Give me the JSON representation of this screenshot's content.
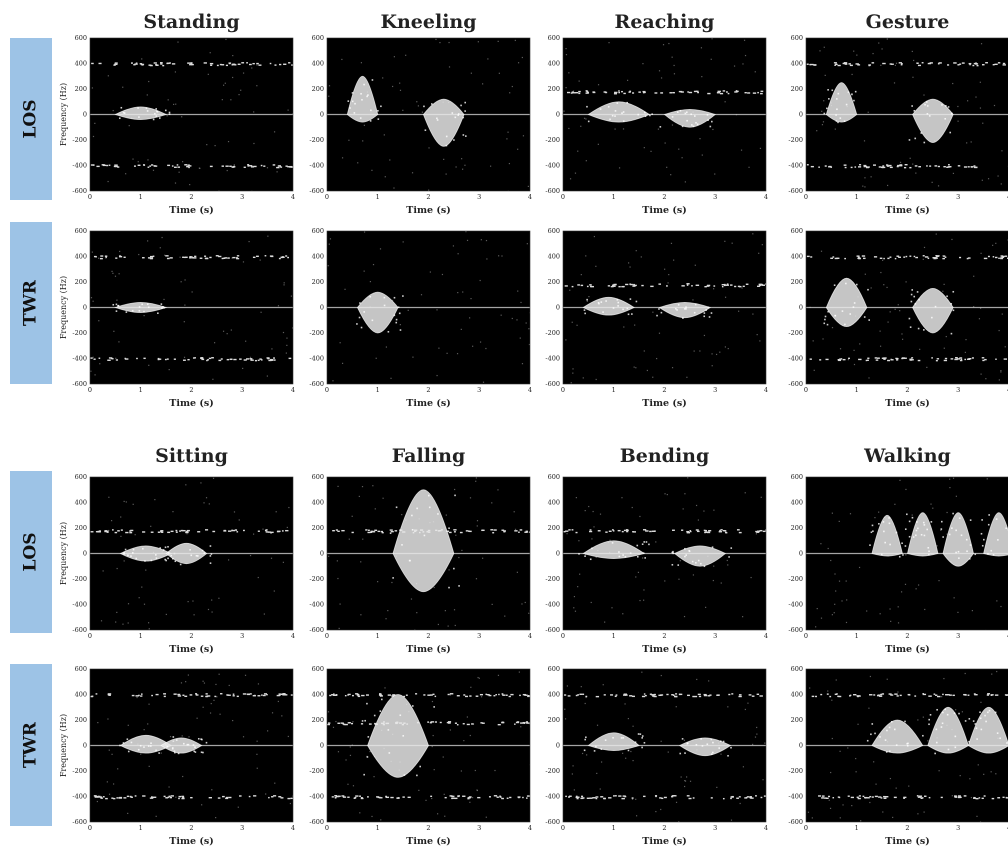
{
  "figure": {
    "row_labels": [
      "LOS",
      "TWR",
      "LOS",
      "TWR"
    ],
    "label_box_color": "#9dc3e6",
    "background": "#000000",
    "signal_color": "#e8e8e8"
  },
  "chart_data": [
    {
      "type": "heatmap",
      "title": "Standing",
      "row": "LOS",
      "xlabel": "Time (s)",
      "ylabel": "Frequency (Hz)",
      "xlim": [
        0,
        4
      ],
      "ylim": [
        -600,
        600
      ],
      "x_ticks": [
        0,
        1,
        2,
        3,
        4
      ],
      "y_ticks": [
        600,
        400,
        200,
        0,
        -200,
        -400,
        -600
      ],
      "bursts": [
        {
          "t_center": 1.0,
          "t_width": 0.5,
          "f_max": 60,
          "f_min": -40
        }
      ],
      "clutter_bands_hz": [
        400,
        -400
      ],
      "max_doppler_hz": 60
    },
    {
      "type": "heatmap",
      "title": "Kneeling",
      "row": "LOS",
      "xlabel": "Time (s)",
      "ylabel": "Frequency (Hz)",
      "xlim": [
        0,
        4
      ],
      "ylim": [
        -600,
        600
      ],
      "x_ticks": [
        0,
        1,
        2,
        3,
        4
      ],
      "y_ticks": [
        600,
        400,
        200,
        0,
        -200,
        -400,
        -600
      ],
      "bursts": [
        {
          "t_center": 0.7,
          "t_width": 0.3,
          "f_max": 300,
          "f_min": -60
        },
        {
          "t_center": 2.3,
          "t_width": 0.4,
          "f_max": 120,
          "f_min": -250
        }
      ],
      "clutter_bands_hz": [],
      "max_doppler_hz": 300
    },
    {
      "type": "heatmap",
      "title": "Reaching",
      "row": "LOS",
      "xlabel": "Time (s)",
      "ylabel": "Frequency (Hz)",
      "xlim": [
        0,
        4
      ],
      "ylim": [
        -600,
        600
      ],
      "x_ticks": [
        0,
        1,
        2,
        3,
        4
      ],
      "y_ticks": [
        600,
        400,
        200,
        0,
        -200,
        -400,
        -600
      ],
      "bursts": [
        {
          "t_center": 1.1,
          "t_width": 0.6,
          "f_max": 100,
          "f_min": -60
        },
        {
          "t_center": 2.5,
          "t_width": 0.5,
          "f_max": 40,
          "f_min": -100
        }
      ],
      "clutter_bands_hz": [
        180
      ],
      "max_doppler_hz": 100
    },
    {
      "type": "heatmap",
      "title": "Gesture",
      "row": "LOS",
      "xlabel": "Time (s)",
      "ylabel": "Frequency (Hz)",
      "xlim": [
        0,
        4
      ],
      "ylim": [
        -600,
        600
      ],
      "x_ticks": [
        0,
        1,
        2,
        3,
        4
      ],
      "y_ticks": [
        600,
        400,
        200,
        0,
        -200,
        -400,
        -600
      ],
      "bursts": [
        {
          "t_center": 0.7,
          "t_width": 0.3,
          "f_max": 250,
          "f_min": -60
        },
        {
          "t_center": 2.5,
          "t_width": 0.4,
          "f_max": 120,
          "f_min": -220
        }
      ],
      "clutter_bands_hz": [
        400,
        -400
      ],
      "max_doppler_hz": 250
    },
    {
      "type": "heatmap",
      "title": "Standing",
      "row": "TWR",
      "xlabel": "Time (s)",
      "ylabel": "Frequency (Hz)",
      "xlim": [
        0,
        4
      ],
      "ylim": [
        -600,
        600
      ],
      "x_ticks": [
        0,
        1,
        2,
        3,
        4
      ],
      "y_ticks": [
        600,
        400,
        200,
        0,
        -200,
        -400,
        -600
      ],
      "bursts": [
        {
          "t_center": 1.0,
          "t_width": 0.5,
          "f_max": 40,
          "f_min": -40
        }
      ],
      "clutter_bands_hz": [
        400,
        -400
      ],
      "max_doppler_hz": 40
    },
    {
      "type": "heatmap",
      "title": "Kneeling",
      "row": "TWR",
      "xlabel": "Time (s)",
      "ylabel": "Frequency (Hz)",
      "xlim": [
        0,
        4
      ],
      "ylim": [
        -600,
        600
      ],
      "x_ticks": [
        0,
        1,
        2,
        3,
        4
      ],
      "y_ticks": [
        600,
        400,
        200,
        0,
        -200,
        -400,
        -600
      ],
      "bursts": [
        {
          "t_center": 1.0,
          "t_width": 0.4,
          "f_max": 120,
          "f_min": -200
        }
      ],
      "clutter_bands_hz": [],
      "max_doppler_hz": 200
    },
    {
      "type": "heatmap",
      "title": "Reaching",
      "row": "TWR",
      "xlabel": "Time (s)",
      "ylabel": "Frequency (Hz)",
      "xlim": [
        0,
        4
      ],
      "ylim": [
        -600,
        600
      ],
      "x_ticks": [
        0,
        1,
        2,
        3,
        4
      ],
      "y_ticks": [
        600,
        400,
        200,
        0,
        -200,
        -400,
        -600
      ],
      "bursts": [
        {
          "t_center": 0.9,
          "t_width": 0.5,
          "f_max": 80,
          "f_min": -60
        },
        {
          "t_center": 2.4,
          "t_width": 0.5,
          "f_max": 40,
          "f_min": -80
        }
      ],
      "clutter_bands_hz": [
        180
      ],
      "max_doppler_hz": 80
    },
    {
      "type": "heatmap",
      "title": "Gesture",
      "row": "TWR",
      "xlabel": "Time (s)",
      "ylabel": "Frequency (Hz)",
      "xlim": [
        0,
        4
      ],
      "ylim": [
        -600,
        600
      ],
      "x_ticks": [
        0,
        1,
        2,
        3,
        4
      ],
      "y_ticks": [
        600,
        400,
        200,
        0,
        -200,
        -400,
        -600
      ],
      "bursts": [
        {
          "t_center": 0.8,
          "t_width": 0.4,
          "f_max": 230,
          "f_min": -150
        },
        {
          "t_center": 2.5,
          "t_width": 0.4,
          "f_max": 150,
          "f_min": -200
        }
      ],
      "clutter_bands_hz": [
        400,
        -400
      ],
      "max_doppler_hz": 230
    },
    {
      "type": "heatmap",
      "title": "Sitting",
      "row": "LOS",
      "xlabel": "Time (s)",
      "ylabel": "Frequency (Hz)",
      "xlim": [
        0,
        4
      ],
      "ylim": [
        -600,
        600
      ],
      "x_ticks": [
        0,
        1,
        2,
        3,
        4
      ],
      "y_ticks": [
        600,
        400,
        200,
        0,
        -200,
        -400,
        -600
      ],
      "bursts": [
        {
          "t_center": 1.1,
          "t_width": 0.5,
          "f_max": 60,
          "f_min": -60
        },
        {
          "t_center": 1.9,
          "t_width": 0.4,
          "f_max": 80,
          "f_min": -80
        }
      ],
      "clutter_bands_hz": [
        180
      ],
      "max_doppler_hz": 80
    },
    {
      "type": "heatmap",
      "title": "Falling",
      "row": "LOS",
      "xlabel": "Time (s)",
      "ylabel": "Frequency (Hz)",
      "xlim": [
        0,
        4
      ],
      "ylim": [
        -600,
        600
      ],
      "x_ticks": [
        0,
        1,
        2,
        3,
        4
      ],
      "y_ticks": [
        600,
        400,
        200,
        0,
        -200,
        -400,
        -600
      ],
      "bursts": [
        {
          "t_center": 1.9,
          "t_width": 0.6,
          "f_max": 500,
          "f_min": -300
        }
      ],
      "clutter_bands_hz": [
        180
      ],
      "max_doppler_hz": 500
    },
    {
      "type": "heatmap",
      "title": "Bending",
      "row": "LOS",
      "xlabel": "Time (s)",
      "ylabel": "Frequency (Hz)",
      "xlim": [
        0,
        4
      ],
      "ylim": [
        -600,
        600
      ],
      "x_ticks": [
        0,
        1,
        2,
        3,
        4
      ],
      "y_ticks": [
        600,
        400,
        200,
        0,
        -200,
        -400,
        -600
      ],
      "bursts": [
        {
          "t_center": 1.0,
          "t_width": 0.6,
          "f_max": 100,
          "f_min": -40
        },
        {
          "t_center": 2.7,
          "t_width": 0.5,
          "f_max": 60,
          "f_min": -100
        }
      ],
      "clutter_bands_hz": [
        180
      ],
      "max_doppler_hz": 100
    },
    {
      "type": "heatmap",
      "title": "Walking",
      "row": "LOS",
      "xlabel": "Time (s)",
      "ylabel": "Frequency (Hz)",
      "xlim": [
        0,
        4
      ],
      "ylim": [
        -600,
        600
      ],
      "x_ticks": [
        0,
        1,
        2,
        3,
        4
      ],
      "y_ticks": [
        600,
        400,
        200,
        0,
        -200,
        -400,
        -600
      ],
      "bursts": [
        {
          "t_center": 1.6,
          "t_width": 0.3,
          "f_max": 300,
          "f_min": -20
        },
        {
          "t_center": 2.3,
          "t_width": 0.3,
          "f_max": 320,
          "f_min": -20
        },
        {
          "t_center": 3.0,
          "t_width": 0.3,
          "f_max": 320,
          "f_min": -100
        },
        {
          "t_center": 3.8,
          "t_width": 0.3,
          "f_max": 320,
          "f_min": -20
        }
      ],
      "clutter_bands_hz": [],
      "max_doppler_hz": 320
    },
    {
      "type": "heatmap",
      "title": "Sitting",
      "row": "TWR",
      "xlabel": "Time (s)",
      "ylabel": "Frequency (Hz)",
      "xlim": [
        0,
        4
      ],
      "ylim": [
        -600,
        600
      ],
      "x_ticks": [
        0,
        1,
        2,
        3,
        4
      ],
      "y_ticks": [
        600,
        400,
        200,
        0,
        -200,
        -400,
        -600
      ],
      "bursts": [
        {
          "t_center": 1.1,
          "t_width": 0.5,
          "f_max": 80,
          "f_min": -60
        },
        {
          "t_center": 1.8,
          "t_width": 0.4,
          "f_max": 60,
          "f_min": -60
        }
      ],
      "clutter_bands_hz": [
        400,
        -400
      ],
      "max_doppler_hz": 80
    },
    {
      "type": "heatmap",
      "title": "Falling",
      "row": "TWR",
      "xlabel": "Time (s)",
      "ylabel": "Frequency (Hz)",
      "xlim": [
        0,
        4
      ],
      "ylim": [
        -600,
        600
      ],
      "x_ticks": [
        0,
        1,
        2,
        3,
        4
      ],
      "y_ticks": [
        600,
        400,
        200,
        0,
        -200,
        -400,
        -600
      ],
      "bursts": [
        {
          "t_center": 1.4,
          "t_width": 0.6,
          "f_max": 400,
          "f_min": -250
        }
      ],
      "clutter_bands_hz": [
        400,
        -400,
        180
      ],
      "max_doppler_hz": 400
    },
    {
      "type": "heatmap",
      "title": "Bending",
      "row": "TWR",
      "xlabel": "Time (s)",
      "ylabel": "Frequency (Hz)",
      "xlim": [
        0,
        4
      ],
      "ylim": [
        -600,
        600
      ],
      "x_ticks": [
        0,
        1,
        2,
        3,
        4
      ],
      "y_ticks": [
        600,
        400,
        200,
        0,
        -200,
        -400,
        -600
      ],
      "bursts": [
        {
          "t_center": 1.0,
          "t_width": 0.5,
          "f_max": 100,
          "f_min": -40
        },
        {
          "t_center": 2.8,
          "t_width": 0.5,
          "f_max": 60,
          "f_min": -80
        }
      ],
      "clutter_bands_hz": [
        400,
        -400
      ],
      "max_doppler_hz": 100
    },
    {
      "type": "heatmap",
      "title": "Walking",
      "row": "TWR",
      "xlabel": "Time (s)",
      "ylabel": "Frequency (Hz)",
      "xlim": [
        0,
        4
      ],
      "ylim": [
        -600,
        600
      ],
      "x_ticks": [
        0,
        1,
        2,
        3,
        4
      ],
      "y_ticks": [
        600,
        400,
        200,
        0,
        -200,
        -400,
        -600
      ],
      "bursts": [
        {
          "t_center": 1.8,
          "t_width": 0.5,
          "f_max": 200,
          "f_min": -60
        },
        {
          "t_center": 2.8,
          "t_width": 0.4,
          "f_max": 300,
          "f_min": -60
        },
        {
          "t_center": 3.6,
          "t_width": 0.4,
          "f_max": 300,
          "f_min": -60
        }
      ],
      "clutter_bands_hz": [
        400,
        -400
      ],
      "max_doppler_hz": 300
    }
  ]
}
